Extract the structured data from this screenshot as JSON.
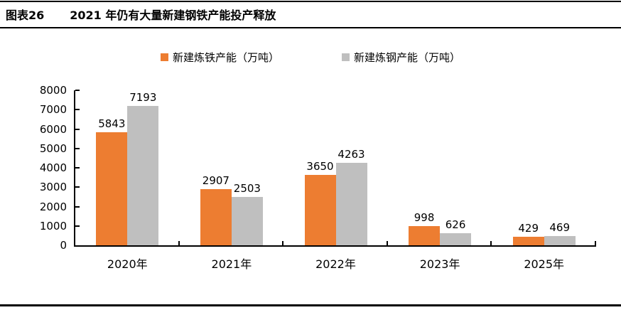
{
  "header": {
    "figure_label": "图表26",
    "title": "2021 年仍有大量新建钢铁产能投产释放"
  },
  "chart_data": {
    "type": "bar",
    "categories": [
      "2020年",
      "2021年",
      "2022年",
      "2023年",
      "2025年"
    ],
    "series": [
      {
        "key": "iron",
        "name": "新建炼铁产能（万吨）",
        "color": "#ED7D31",
        "values": [
          5843,
          2907,
          3650,
          998,
          429
        ]
      },
      {
        "key": "steel",
        "name": "新建炼钢产能（万吨）",
        "color": "#BFBFBF",
        "values": [
          7193,
          2503,
          4263,
          626,
          469
        ]
      }
    ],
    "ylim": [
      0,
      8000
    ],
    "ytick_step": 1000,
    "grid": false,
    "legend_position": "top",
    "data_labels": true,
    "axis_color": "#000000"
  }
}
